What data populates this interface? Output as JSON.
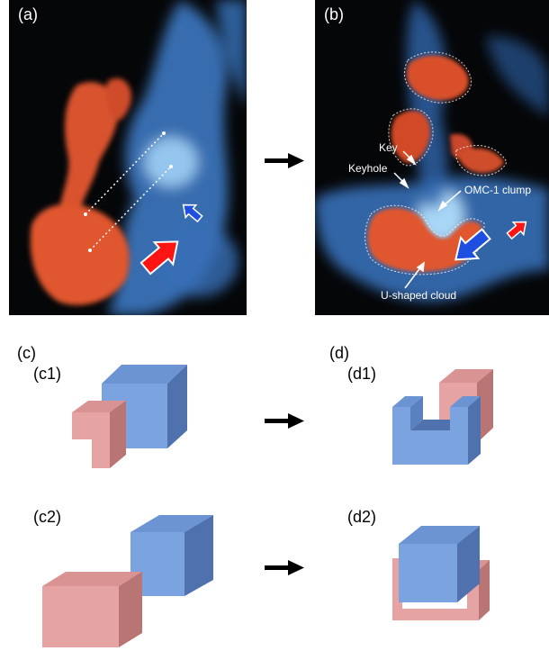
{
  "labels": {
    "a": "(a)",
    "b": "(b)",
    "c": "(c)",
    "d": "(d)",
    "c1": "(c1)",
    "c2": "(c2)",
    "d1": "(d1)",
    "d2": "(d2)"
  },
  "annotations": {
    "key": "Key",
    "keyhole": "Keyhole",
    "omc1": "OMC-1 clump",
    "ushaped": "U-shaped cloud"
  },
  "colors": {
    "panel_bg": "#050608",
    "blue_cloud": "#4a8fd8",
    "red_cloud": "#e0522e",
    "red_arrow": "#ff1a1a",
    "blue_arrow": "#1f4fe0",
    "box_blue_front": "#7aa3e0",
    "box_blue_top": "#6d94d2",
    "box_blue_side": "#4f72ae",
    "box_pink_front": "#e6a3a3",
    "box_pink_top": "#d99393",
    "box_pink_side": "#b97474"
  }
}
